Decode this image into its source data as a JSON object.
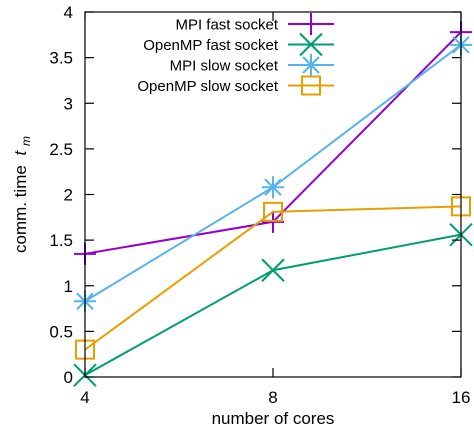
{
  "chart_data": {
    "type": "line",
    "xlabel": "number of cores",
    "ylabel": "comm. time",
    "ylabel_symbol": "t",
    "ylabel_subscript": "m",
    "categories": [
      "4",
      "8",
      "16"
    ],
    "x": [
      4,
      8,
      16
    ],
    "xscale": "log2",
    "ylim": [
      0,
      4
    ],
    "yticks": [
      "0",
      "0.5",
      "1",
      "1.5",
      "2",
      "2.5",
      "3",
      "3.5",
      "4"
    ],
    "grid": false,
    "legend_position": "top-right",
    "series": [
      {
        "name": "MPI fast socket",
        "values": [
          1.35,
          1.7,
          3.78
        ],
        "color": "#9400d3",
        "marker": "plus"
      },
      {
        "name": "OpenMP fast socket",
        "values": [
          0.02,
          1.17,
          1.56
        ],
        "color": "#009e73",
        "marker": "cross"
      },
      {
        "name": "MPI slow socket",
        "values": [
          0.83,
          2.08,
          3.64
        ],
        "color": "#56b4e9",
        "marker": "star"
      },
      {
        "name": "OpenMP slow socket",
        "values": [
          0.3,
          1.81,
          1.87
        ],
        "color": "#e69f00",
        "marker": "square"
      }
    ]
  }
}
